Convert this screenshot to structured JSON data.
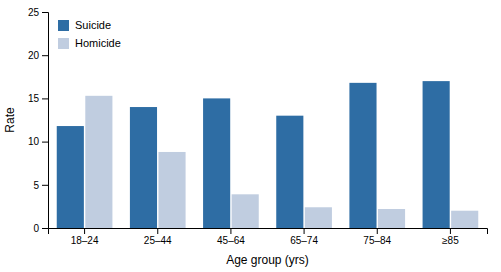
{
  "chart_data": {
    "type": "bar",
    "categories": [
      "18–24",
      "25–44",
      "45–64",
      "65–74",
      "75–84",
      "≥85"
    ],
    "series": [
      {
        "name": "Suicide",
        "color": "#2E6DA4",
        "values": [
          11.8,
          14.0,
          15.0,
          13.0,
          16.8,
          17.0
        ]
      },
      {
        "name": "Homicide",
        "color": "#C0CDE0",
        "values": [
          15.3,
          8.8,
          3.9,
          2.4,
          2.2,
          2.0
        ]
      }
    ],
    "xlabel": "Age group (yrs)",
    "ylabel": "Rate",
    "ylim": [
      0,
      25
    ],
    "yticks": [
      0,
      5,
      10,
      15,
      20,
      25
    ],
    "grid": false,
    "legend": "upper left"
  }
}
